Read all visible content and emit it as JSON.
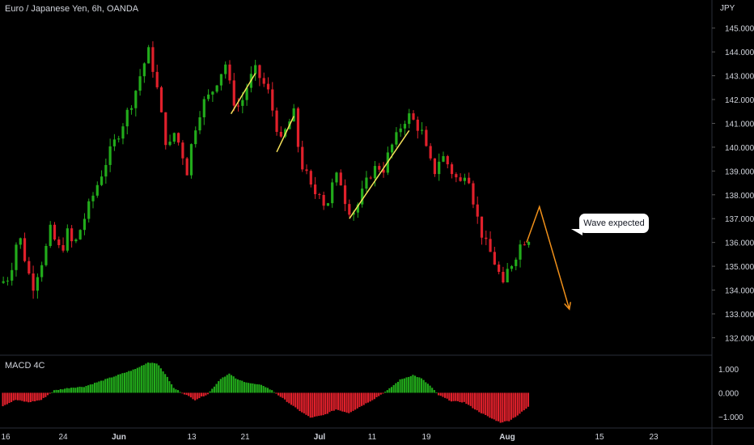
{
  "chart_data": {
    "type": "candlestick",
    "title": "Euro / Japanese Yen, 6h, OANDA",
    "currency": "JPY",
    "price_ticks": [
      "145.000",
      "144.000",
      "143.000",
      "142.000",
      "141.000",
      "140.000",
      "139.000",
      "138.000",
      "137.000",
      "136.000",
      "135.000",
      "134.000",
      "133.000",
      "132.000"
    ],
    "ylim": [
      131.3,
      145.5
    ],
    "x_ticks": [
      "16",
      "24",
      "Jun",
      "13",
      "21",
      "Jul",
      "11",
      "19",
      "Aug",
      "15",
      "23"
    ],
    "annotation": "Wave expected",
    "up_color": "#22ab1b",
    "down_color": "#e0202b",
    "price_path": [
      {
        "t": 0,
        "p": 134.3
      },
      {
        "t": 2,
        "p": 134.6
      },
      {
        "t": 4,
        "p": 136.4
      },
      {
        "t": 5,
        "p": 135.8
      },
      {
        "t": 6,
        "p": 134.9
      },
      {
        "t": 7.5,
        "p": 134.2
      },
      {
        "t": 9,
        "p": 135.0
      },
      {
        "t": 10,
        "p": 135.4
      },
      {
        "t": 11.5,
        "p": 136.5
      },
      {
        "t": 13,
        "p": 135.9
      },
      {
        "t": 14,
        "p": 135.6
      },
      {
        "t": 15.5,
        "p": 136.4
      },
      {
        "t": 17,
        "p": 135.8
      },
      {
        "t": 19,
        "p": 136.8
      },
      {
        "t": 22,
        "p": 138.2
      },
      {
        "t": 25,
        "p": 139.6
      },
      {
        "t": 28,
        "p": 140.8
      },
      {
        "t": 31,
        "p": 142.1
      },
      {
        "t": 33,
        "p": 143.3
      },
      {
        "t": 34.5,
        "p": 144.0
      },
      {
        "t": 36,
        "p": 143.0
      },
      {
        "t": 37.5,
        "p": 141.3
      },
      {
        "t": 39,
        "p": 139.8
      },
      {
        "t": 40.5,
        "p": 140.6
      },
      {
        "t": 42,
        "p": 140.0
      },
      {
        "t": 43.5,
        "p": 139.0
      },
      {
        "t": 45,
        "p": 140.6
      },
      {
        "t": 47,
        "p": 141.8
      },
      {
        "t": 49,
        "p": 142.2
      },
      {
        "t": 51,
        "p": 143.0
      },
      {
        "t": 52.5,
        "p": 143.5
      },
      {
        "t": 53.5,
        "p": 142.6
      },
      {
        "t": 55,
        "p": 141.6
      },
      {
        "t": 56.5,
        "p": 142.0
      },
      {
        "t": 58,
        "p": 142.8
      },
      {
        "t": 59.5,
        "p": 143.2
      },
      {
        "t": 61,
        "p": 142.8
      },
      {
        "t": 62.5,
        "p": 142.3
      },
      {
        "t": 64,
        "p": 141.2
      },
      {
        "t": 65.5,
        "p": 140.2
      },
      {
        "t": 67,
        "p": 140.9
      },
      {
        "t": 68.5,
        "p": 141.4
      },
      {
        "t": 70,
        "p": 139.4
      },
      {
        "t": 71.5,
        "p": 138.8
      },
      {
        "t": 73,
        "p": 138.0
      },
      {
        "t": 74.5,
        "p": 138.2
      },
      {
        "t": 76,
        "p": 137.4
      },
      {
        "t": 77.5,
        "p": 138.4
      },
      {
        "t": 79,
        "p": 138.9
      },
      {
        "t": 80.5,
        "p": 137.8
      },
      {
        "t": 82,
        "p": 137.2
      },
      {
        "t": 83.5,
        "p": 137.6
      },
      {
        "t": 85,
        "p": 138.3
      },
      {
        "t": 86.5,
        "p": 138.9
      },
      {
        "t": 88,
        "p": 139.2
      },
      {
        "t": 89.5,
        "p": 139.1
      },
      {
        "t": 91,
        "p": 139.9
      },
      {
        "t": 92.5,
        "p": 140.4
      },
      {
        "t": 94,
        "p": 141.1
      },
      {
        "t": 95.5,
        "p": 141.3
      },
      {
        "t": 97,
        "p": 141.0
      },
      {
        "t": 98.5,
        "p": 140.6
      },
      {
        "t": 100,
        "p": 139.5
      },
      {
        "t": 101.5,
        "p": 139.0
      },
      {
        "t": 103,
        "p": 139.7
      },
      {
        "t": 104.5,
        "p": 139.3
      },
      {
        "t": 106,
        "p": 138.8
      },
      {
        "t": 107.5,
        "p": 138.5
      },
      {
        "t": 109,
        "p": 139.2
      },
      {
        "t": 110.5,
        "p": 137.8
      },
      {
        "t": 112,
        "p": 136.6
      },
      {
        "t": 113.5,
        "p": 135.9
      },
      {
        "t": 115,
        "p": 135.4
      },
      {
        "t": 116.5,
        "p": 134.7
      },
      {
        "t": 117.5,
        "p": 134.1
      },
      {
        "t": 118.5,
        "p": 134.8
      },
      {
        "t": 120,
        "p": 135.3
      },
      {
        "t": 121.5,
        "p": 135.9
      },
      {
        "t": 123,
        "p": 136.2
      }
    ],
    "swing_lines": [
      {
        "from": [
          53.8,
          141.4
        ],
        "to": [
          59.5,
          143.1
        ]
      },
      {
        "from": [
          64.5,
          139.8
        ],
        "to": [
          68.5,
          141.3
        ]
      },
      {
        "from": [
          81.5,
          137.0
        ],
        "to": [
          95.5,
          140.7
        ]
      }
    ],
    "projection": [
      [
        123,
        136.0
      ],
      [
        126,
        137.5
      ],
      [
        133,
        133.2
      ]
    ],
    "macd": {
      "title": "MACD 4C",
      "ticks": [
        "1.000",
        "0.000",
        "−1.000"
      ],
      "ylim": [
        -1.45,
        1.55
      ],
      "positive_color": "#22ab1b",
      "negative_color": "#e0202b",
      "path": [
        {
          "t": 0,
          "v": -0.55
        },
        {
          "t": 3,
          "v": -0.3
        },
        {
          "t": 6,
          "v": -0.4
        },
        {
          "t": 9,
          "v": -0.3
        },
        {
          "t": 12,
          "v": 0.1
        },
        {
          "t": 16,
          "v": 0.22
        },
        {
          "t": 19,
          "v": 0.26
        },
        {
          "t": 23,
          "v": 0.5
        },
        {
          "t": 27,
          "v": 0.75
        },
        {
          "t": 31,
          "v": 1.0
        },
        {
          "t": 34,
          "v": 1.28
        },
        {
          "t": 36,
          "v": 1.25
        },
        {
          "t": 38,
          "v": 0.8
        },
        {
          "t": 40,
          "v": 0.2
        },
        {
          "t": 43,
          "v": -0.1
        },
        {
          "t": 45,
          "v": -0.3
        },
        {
          "t": 48,
          "v": -0.05
        },
        {
          "t": 51,
          "v": 0.6
        },
        {
          "t": 53,
          "v": 0.8
        },
        {
          "t": 55,
          "v": 0.55
        },
        {
          "t": 58,
          "v": 0.4
        },
        {
          "t": 61,
          "v": 0.3
        },
        {
          "t": 63,
          "v": 0.1
        },
        {
          "t": 66,
          "v": -0.3
        },
        {
          "t": 69,
          "v": -0.7
        },
        {
          "t": 72,
          "v": -1.05
        },
        {
          "t": 75,
          "v": -0.95
        },
        {
          "t": 78,
          "v": -0.7
        },
        {
          "t": 81,
          "v": -0.85
        },
        {
          "t": 84,
          "v": -0.55
        },
        {
          "t": 87,
          "v": -0.25
        },
        {
          "t": 90,
          "v": 0.1
        },
        {
          "t": 93,
          "v": 0.55
        },
        {
          "t": 96,
          "v": 0.75
        },
        {
          "t": 98,
          "v": 0.6
        },
        {
          "t": 100,
          "v": 0.3
        },
        {
          "t": 102,
          "v": -0.1
        },
        {
          "t": 105,
          "v": -0.35
        },
        {
          "t": 108,
          "v": -0.4
        },
        {
          "t": 111,
          "v": -0.75
        },
        {
          "t": 114,
          "v": -1.05
        },
        {
          "t": 116.5,
          "v": -1.25
        },
        {
          "t": 118.5,
          "v": -1.18
        },
        {
          "t": 120.5,
          "v": -0.95
        },
        {
          "t": 123,
          "v": -0.6
        }
      ]
    }
  }
}
